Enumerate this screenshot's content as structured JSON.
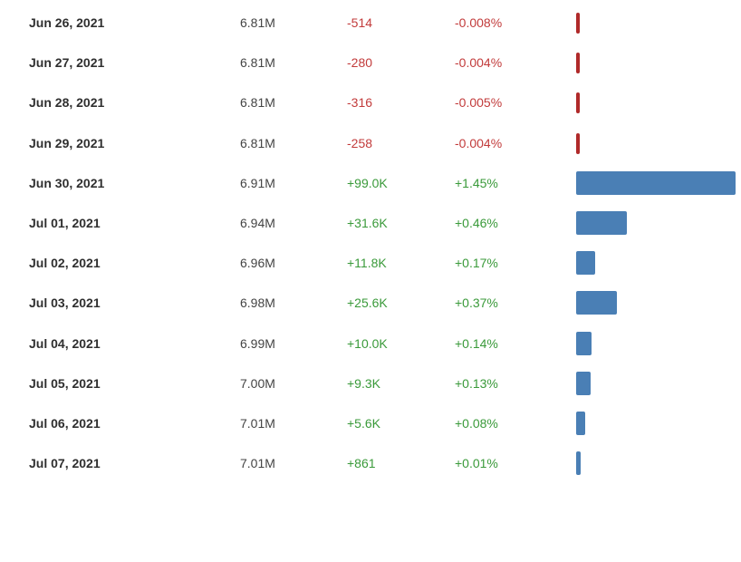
{
  "colors": {
    "negative_text": "#c23b3b",
    "positive_text": "#3a9a3a",
    "positive_bar": "#4a7fb5",
    "negative_bar": "#b02a2a"
  },
  "rows": [
    {
      "date": "Jun 26, 2021",
      "total": "6.81M",
      "change": "-514",
      "pct": "-0.008%",
      "pct_value": -0.008,
      "direction": "neg"
    },
    {
      "date": "Jun 27, 2021",
      "total": "6.81M",
      "change": "-280",
      "pct": "-0.004%",
      "pct_value": -0.004,
      "direction": "neg"
    },
    {
      "date": "Jun 28, 2021",
      "total": "6.81M",
      "change": "-316",
      "pct": "-0.005%",
      "pct_value": -0.005,
      "direction": "neg"
    },
    {
      "date": "Jun 29, 2021",
      "total": "6.81M",
      "change": "-258",
      "pct": "-0.004%",
      "pct_value": -0.004,
      "direction": "neg"
    },
    {
      "date": "Jun 30, 2021",
      "total": "6.91M",
      "change": "+99.0K",
      "pct": "+1.45%",
      "pct_value": 1.45,
      "direction": "pos"
    },
    {
      "date": "Jul 01, 2021",
      "total": "6.94M",
      "change": "+31.6K",
      "pct": "+0.46%",
      "pct_value": 0.46,
      "direction": "pos"
    },
    {
      "date": "Jul 02, 2021",
      "total": "6.96M",
      "change": "+11.8K",
      "pct": "+0.17%",
      "pct_value": 0.17,
      "direction": "pos"
    },
    {
      "date": "Jul 03, 2021",
      "total": "6.98M",
      "change": "+25.6K",
      "pct": "+0.37%",
      "pct_value": 0.37,
      "direction": "pos"
    },
    {
      "date": "Jul 04, 2021",
      "total": "6.99M",
      "change": "+10.0K",
      "pct": "+0.14%",
      "pct_value": 0.14,
      "direction": "pos"
    },
    {
      "date": "Jul 05, 2021",
      "total": "7.00M",
      "change": "+9.3K",
      "pct": "+0.13%",
      "pct_value": 0.13,
      "direction": "pos"
    },
    {
      "date": "Jul 06, 2021",
      "total": "7.01M",
      "change": "+5.6K",
      "pct": "+0.08%",
      "pct_value": 0.08,
      "direction": "pos"
    },
    {
      "date": "Jul 07, 2021",
      "total": "7.01M",
      "change": "+861",
      "pct": "+0.01%",
      "pct_value": 0.01,
      "direction": "pos"
    }
  ]
}
